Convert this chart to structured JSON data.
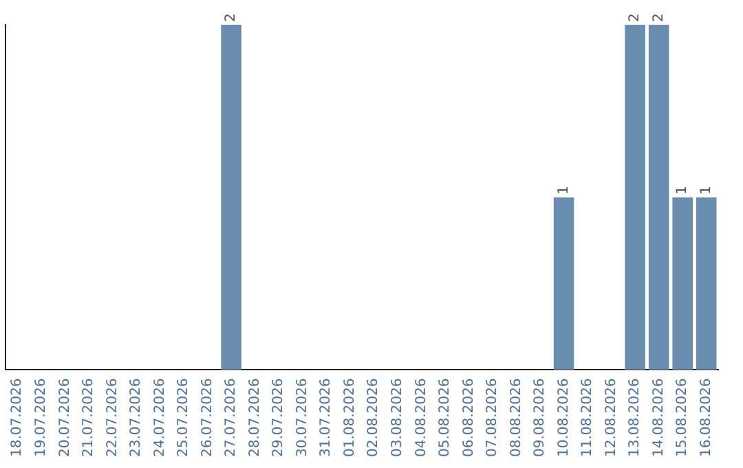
{
  "chart_data": {
    "type": "bar",
    "categories": [
      "18.07.2026",
      "19.07.2026",
      "20.07.2026",
      "21.07.2026",
      "22.07.2026",
      "23.07.2026",
      "24.07.2026",
      "25.07.2026",
      "26.07.2026",
      "27.07.2026",
      "28.07.2026",
      "29.07.2026",
      "30.07.2026",
      "31.07.2026",
      "01.08.2026",
      "02.08.2026",
      "03.08.2026",
      "04.08.2026",
      "05.08.2026",
      "06.08.2026",
      "07.08.2026",
      "08.08.2026",
      "09.08.2026",
      "10.08.2026",
      "11.08.2026",
      "12.08.2026",
      "13.08.2026",
      "14.08.2026",
      "15.08.2026",
      "16.08.2026"
    ],
    "values": [
      0,
      0,
      0,
      0,
      0,
      0,
      0,
      0,
      0,
      2,
      0,
      0,
      0,
      0,
      0,
      0,
      0,
      0,
      0,
      0,
      0,
      0,
      0,
      1,
      0,
      0,
      2,
      2,
      1,
      1
    ],
    "value_labels": [
      null,
      null,
      null,
      null,
      null,
      null,
      null,
      null,
      null,
      "2",
      null,
      null,
      null,
      null,
      null,
      null,
      null,
      null,
      null,
      null,
      null,
      null,
      null,
      "1",
      null,
      null,
      "2",
      "2",
      "1",
      "1"
    ],
    "color": "#6a8caf",
    "grid": false,
    "legend": false,
    "tick_labels": "x"
  }
}
